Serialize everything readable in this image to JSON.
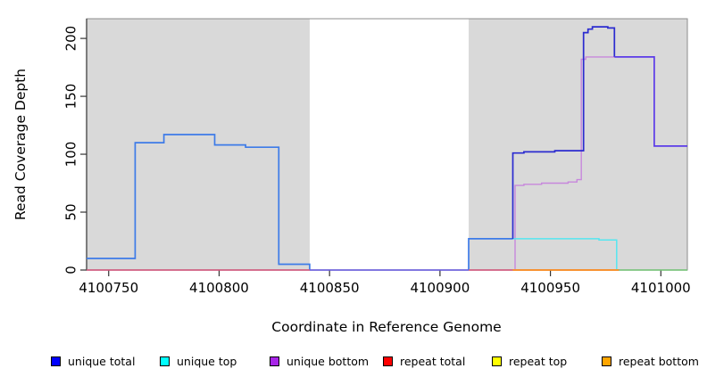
{
  "figure": {
    "background": "#FFFFFF",
    "panel_fill": "#D9D9D9",
    "box_color": "#8C8C8C",
    "axis_color": "#333333"
  },
  "axes": {
    "y": {
      "label": "Read Coverage Depth",
      "tick_labels": [
        "0",
        "50",
        "100",
        "150",
        "200"
      ],
      "tick_values": [
        0,
        50,
        100,
        150,
        200
      ]
    },
    "x": {
      "label": "Coordinate in Reference Genome",
      "tick_labels": [
        "4100750",
        "4100800",
        "4100850",
        "4100900",
        "4100950",
        "4101000"
      ],
      "tick_values": [
        4100750,
        4100800,
        4100850,
        4100900,
        4100950,
        4101000
      ]
    }
  },
  "chart_data": {
    "type": "line",
    "title": "",
    "xlabel": "Coordinate in Reference Genome",
    "ylabel": "Read Coverage Depth",
    "xlim": [
      4100740,
      4101012
    ],
    "ylim": [
      0,
      217
    ],
    "grid": false,
    "legend_position": "bottom",
    "shaded_regions": [
      {
        "name": "left-unique-region",
        "x0": 4100740,
        "x1": 4100841
      },
      {
        "name": "right-unique-region",
        "x0": 4100913,
        "x1": 4101012
      }
    ],
    "series": [
      {
        "key": "unique-total-left",
        "name": "unique total (left region, coincides with unique top)",
        "color": "#3D7BE8",
        "width": 1.7,
        "points": [
          [
            4100740,
            10
          ],
          [
            4100762,
            10
          ],
          [
            4100762,
            110
          ],
          [
            4100775,
            110
          ],
          [
            4100775,
            117
          ],
          [
            4100798,
            117
          ],
          [
            4100798,
            108
          ],
          [
            4100812,
            108
          ],
          [
            4100812,
            106
          ],
          [
            4100827,
            106
          ],
          [
            4100827,
            5
          ],
          [
            4100841,
            5
          ],
          [
            4100841,
            0
          ]
        ]
      },
      {
        "key": "zero-line-gap",
        "name": "unique total+bottom at zero across unshaded gap",
        "color": "#6A5CE8",
        "width": 1.5,
        "points": [
          [
            4100841,
            0
          ],
          [
            4100913,
            0
          ]
        ]
      },
      {
        "key": "unique-total-right-low",
        "name": "unique total low step (right region)",
        "color": "#3D7BE8",
        "width": 1.7,
        "points": [
          [
            4100913,
            0
          ],
          [
            4100913,
            27
          ],
          [
            4100933,
            27
          ]
        ]
      },
      {
        "key": "repeat-total-left",
        "name": "repeat total at zero (left region)",
        "color": "#DB5880",
        "width": 1.4,
        "points": [
          [
            4100740,
            0
          ],
          [
            4100841,
            0
          ]
        ]
      },
      {
        "key": "repeat-total-right",
        "name": "repeat total at zero (right region)",
        "color": "#DB5880",
        "width": 1.4,
        "points": [
          [
            4100913,
            0
          ],
          [
            4100933,
            0
          ]
        ]
      },
      {
        "key": "unique-bottom",
        "name": "unique bottom",
        "color": "#C787DC",
        "width": 1.4,
        "points": [
          [
            4100934,
            0
          ],
          [
            4100934,
            73
          ],
          [
            4100938,
            73
          ],
          [
            4100938,
            74
          ],
          [
            4100946,
            74
          ],
          [
            4100946,
            75
          ],
          [
            4100958,
            75
          ],
          [
            4100958,
            76
          ],
          [
            4100962,
            76
          ],
          [
            4100962,
            78
          ],
          [
            4100964,
            78
          ],
          [
            4100964,
            182
          ],
          [
            4100966,
            182
          ],
          [
            4100966,
            184
          ],
          [
            4100979,
            184
          ]
        ]
      },
      {
        "key": "unique-top",
        "name": "unique top",
        "color": "#55E6F0",
        "width": 1.5,
        "points": [
          [
            4100933,
            27
          ],
          [
            4100972,
            27
          ],
          [
            4100972,
            26
          ],
          [
            4100980,
            26
          ],
          [
            4100980,
            0
          ]
        ]
      },
      {
        "key": "unique-total-right",
        "name": "unique total (right region)",
        "color": "#2B2BD0",
        "width": 1.7,
        "points": [
          [
            4100933,
            27
          ],
          [
            4100933,
            101
          ],
          [
            4100938,
            101
          ],
          [
            4100938,
            102
          ],
          [
            4100952,
            102
          ],
          [
            4100952,
            103
          ],
          [
            4100965,
            103
          ],
          [
            4100965,
            205
          ],
          [
            4100967,
            205
          ],
          [
            4100967,
            208
          ],
          [
            4100969,
            208
          ],
          [
            4100969,
            210
          ],
          [
            4100976,
            210
          ],
          [
            4100976,
            209
          ],
          [
            4100979,
            209
          ],
          [
            4100979,
            184
          ]
        ]
      },
      {
        "key": "unique-total-bottom-merged",
        "name": "unique total coinciding with unique bottom",
        "color": "#5B3BE8",
        "width": 1.7,
        "points": [
          [
            4100979,
            184
          ],
          [
            4100997,
            184
          ],
          [
            4100997,
            107
          ],
          [
            4101012,
            107
          ]
        ]
      },
      {
        "key": "repeat-bottom",
        "name": "repeat bottom at zero",
        "color": "#FF8C1E",
        "width": 1.7,
        "points": [
          [
            4100933,
            0
          ],
          [
            4100981,
            0
          ]
        ]
      },
      {
        "key": "baseline-green",
        "name": "green baseline segment (far right)",
        "color": "#7CCE7E",
        "width": 1.5,
        "points": [
          [
            4100981,
            0
          ],
          [
            4101012,
            0
          ]
        ]
      }
    ],
    "legend": [
      {
        "label": "unique total",
        "color": "#0000FF"
      },
      {
        "label": "unique top",
        "color": "#00FFFF"
      },
      {
        "label": "unique bottom",
        "color": "#A825E8"
      },
      {
        "label": "repeat total",
        "color": "#FF0000"
      },
      {
        "label": "repeat top",
        "color": "#FFFF00"
      },
      {
        "label": "repeat bottom",
        "color": "#FFA500"
      }
    ]
  }
}
